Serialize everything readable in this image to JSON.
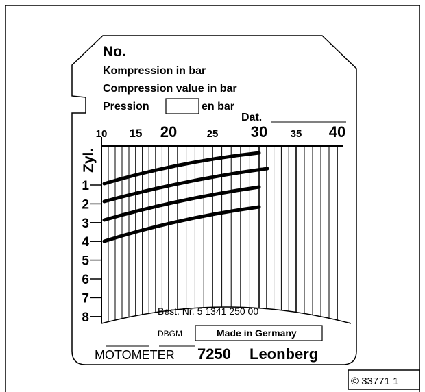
{
  "header": {
    "number": "No.",
    "line1": "Kompression in bar",
    "line2": "Compression value in bar",
    "line3a": "Pression",
    "line3b": "en bar",
    "date": "Dat."
  },
  "scale": {
    "labels": [
      "10",
      "15",
      "20",
      "25",
      "30",
      "35",
      "40"
    ]
  },
  "cylinders": {
    "title": "Zyl.",
    "labels": [
      "1",
      "2",
      "3",
      "4",
      "5",
      "6",
      "7",
      "8"
    ]
  },
  "footer": {
    "order_no": "Best. Nr. 5 1341 250 00",
    "dbgm": "DBGM",
    "made_in": "Made in Germany",
    "brand": "MOTOMETER",
    "model": "7250",
    "city": "Leonberg"
  },
  "copyright": "© 33771 1"
}
